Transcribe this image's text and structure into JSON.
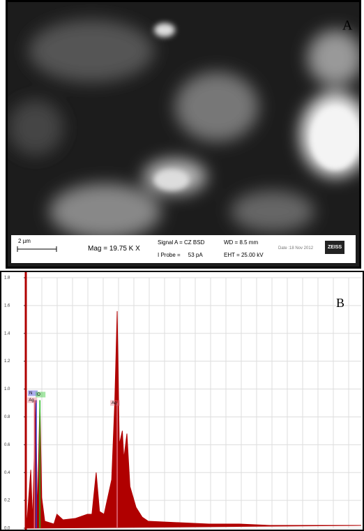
{
  "panel_a": {
    "label": "A",
    "scale_bar": "2 µm",
    "mag": "Mag = 19.75 K X",
    "signal": "Signal A = CZ BSD",
    "probe": "I Probe =     53 pA",
    "wd": "WD = 8.5 mm",
    "eht": "EHT = 25.00 kV",
    "date": "Date :18 Nov 2012",
    "brand": "ZEISS"
  },
  "chart_data": {
    "type": "area",
    "label": "B",
    "color": "#b00000",
    "x": [
      0.0,
      0.14,
      0.2,
      0.3,
      0.36,
      0.44,
      0.5,
      0.6,
      0.9,
      1.0,
      1.2,
      1.6,
      2.0,
      2.15,
      2.29,
      2.4,
      2.55,
      2.8,
      2.9,
      2.98,
      3.05,
      3.15,
      3.2,
      3.3,
      3.4,
      3.6,
      3.8,
      4.0,
      5.0,
      6.0,
      7.0,
      8.0,
      9.0,
      10.0,
      11.0
    ],
    "values": [
      0.0,
      0.42,
      0.05,
      0.92,
      0.1,
      0.92,
      0.22,
      0.05,
      0.03,
      0.1,
      0.06,
      0.07,
      0.1,
      0.1,
      0.4,
      0.12,
      0.1,
      0.35,
      0.9,
      1.56,
      0.6,
      0.7,
      0.5,
      0.68,
      0.3,
      0.15,
      0.08,
      0.05,
      0.04,
      0.03,
      0.03,
      0.02,
      0.02,
      0.02,
      0.02
    ],
    "xlim": [
      0,
      11
    ],
    "ylim": [
      0,
      1.8
    ],
    "yticks": [
      {
        "value": 0,
        "label": "0.0"
      },
      {
        "value": 0.2,
        "label": "0.2"
      },
      {
        "value": 0.4,
        "label": "0.4"
      },
      {
        "value": 0.6,
        "label": "0.6"
      },
      {
        "value": 0.8,
        "label": "0.8"
      },
      {
        "value": 1,
        "label": "1.0"
      },
      {
        "value": 1.2,
        "label": "1.2"
      },
      {
        "value": 1.4,
        "label": "1.4"
      },
      {
        "value": 1.6,
        "label": "1.6"
      },
      {
        "value": 1.8,
        "label": "1.8"
      }
    ],
    "grid": true,
    "markers": [
      {
        "label": "N",
        "x": 0.32,
        "y": 0.92,
        "color": "#3030d0"
      },
      {
        "label": "O",
        "x": 0.44,
        "y": 0.92,
        "color": "#20c020"
      },
      {
        "label": "Ag",
        "x": 0.26,
        "y": 0.92,
        "color": "#e07080"
      },
      {
        "label": "Ag",
        "x": 2.98,
        "y": 0.9,
        "color": "#e07080"
      }
    ]
  }
}
